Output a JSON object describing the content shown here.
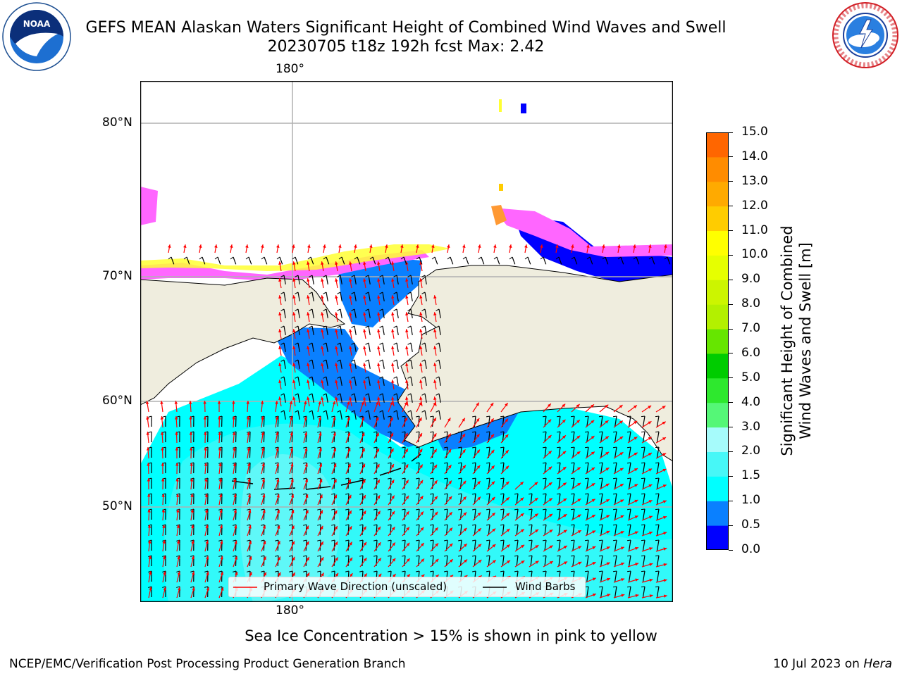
{
  "header": {
    "title_line1": "GEFS MEAN Alaskan Waters Significant Height of Combined Wind Waves and Swell",
    "title_line2": "20230705 t18z 192h fcst   Max: 2.42",
    "noaa_logo_text": "NOAA",
    "noaa_ring_text": "NATIONAL OCEANIC AND ATMOSPHERIC ADMINISTRATION · U.S. DEPARTMENT OF COMMERCE",
    "nws_ring_text": "NATIONAL WEATHER SERVICE"
  },
  "map": {
    "lon_label_top": "180°",
    "lon_label_bottom": "180°",
    "lat_labels": [
      "80°N",
      "70°N",
      "60°N",
      "50°N"
    ],
    "colors": {
      "land": "#efedde",
      "ocean_light": "#a6fbfb",
      "ocean_cyan": "#00ffff",
      "ocean_mid": "#47f7f7",
      "ocean_blue": "#0a80ff",
      "ocean_deep": "#0000ff",
      "ice_pink": "#ff66ff",
      "ice_orange": "#ff9933",
      "ice_yellow": "#ffff33",
      "wave_arrow": "#ff0000",
      "wind_barb": "#000000",
      "grid": "#b0b0b0"
    },
    "legend": {
      "wave_label": "Primary Wave Direction (unscaled)",
      "wind_label": "Wind Barbs"
    }
  },
  "colorbar": {
    "ticks": [
      "15.0",
      "14.0",
      "13.0",
      "12.0",
      "11.0",
      "10.0",
      "9.0",
      "8.0",
      "7.0",
      "6.0",
      "5.0",
      "4.0",
      "3.0",
      "2.0",
      "1.5",
      "1.0",
      "0.5",
      "0.0"
    ],
    "colors": [
      "#0000ff",
      "#0a80ff",
      "#00ffff",
      "#47f7f7",
      "#a6fbfb",
      "#55f777",
      "#2ee82e",
      "#00cc00",
      "#66e600",
      "#b3f000",
      "#ccf500",
      "#e6ff00",
      "#ffff00",
      "#ffcc00",
      "#ffaa00",
      "#ff8c00",
      "#ff6600",
      "#ff3300",
      "#ff0000"
    ],
    "label_line1": "Significant Height of Combined",
    "label_line2": "Wind Waves and Swell [m]"
  },
  "footer": {
    "ice_note": "Sea Ice Concentration > 15% is shown in pink to yellow",
    "left": "NCEP/EMC/Verification Post Processing Product Generation Branch",
    "right_date": "10 Jul 2023 on ",
    "right_machine": "Hera"
  }
}
